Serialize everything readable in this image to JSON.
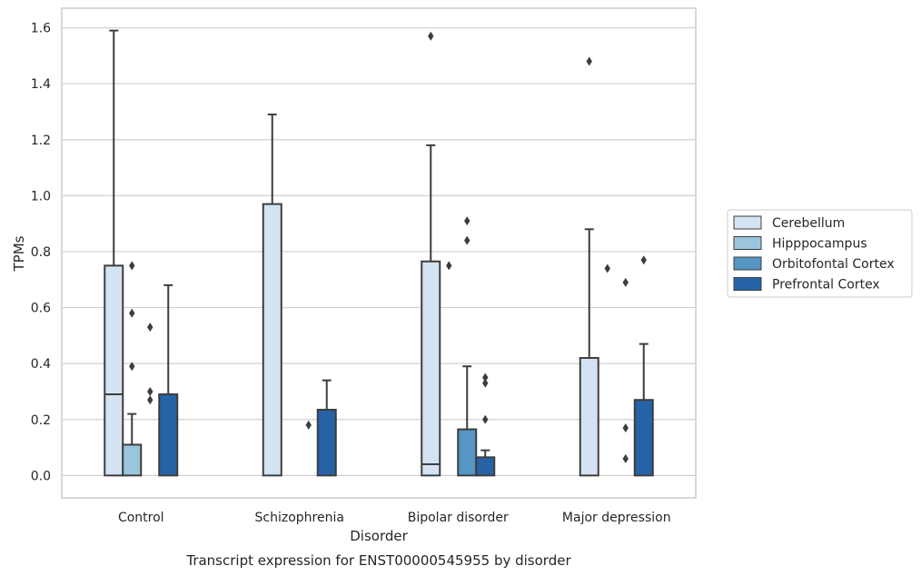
{
  "chart_data": {
    "type": "box",
    "title": "",
    "caption": "Transcript expression for ENST00000545955 by disorder",
    "xlabel": "Disorder",
    "ylabel": "TPMs",
    "ylim": [
      -0.08,
      1.67
    ],
    "yticks": [
      "0.0",
      "0.2",
      "0.4",
      "0.6",
      "0.8",
      "1.0",
      "1.2",
      "1.4",
      "1.6"
    ],
    "grid": "horizontal",
    "legend_position": "center-right",
    "categories": [
      "Control",
      "Schizophrenia",
      "Bipolar disorder",
      "Major depression"
    ],
    "series": [
      {
        "name": "Cerebellum",
        "color": "#d4e3f1",
        "boxes": [
          {
            "q1": 0.0,
            "median": 0.29,
            "q3": 0.75,
            "whisker_low": 0.0,
            "whisker_high": 1.59,
            "outliers": []
          },
          {
            "q1": 0.0,
            "median": 0.0,
            "q3": 0.97,
            "whisker_low": 0.0,
            "whisker_high": 1.29,
            "outliers": []
          },
          {
            "q1": 0.0,
            "median": 0.04,
            "q3": 0.765,
            "whisker_low": 0.0,
            "whisker_high": 1.18,
            "outliers": [
              1.57
            ]
          },
          {
            "q1": 0.0,
            "median": 0.0,
            "q3": 0.42,
            "whisker_low": 0.0,
            "whisker_high": 0.88,
            "outliers": [
              1.48
            ]
          }
        ]
      },
      {
        "name": "Hipppocampus",
        "color": "#9bc5dc",
        "boxes": [
          {
            "q1": 0.0,
            "median": 0.0,
            "q3": 0.11,
            "whisker_low": 0.0,
            "whisker_high": 0.22,
            "outliers": [
              0.39,
              0.58,
              0.75
            ]
          },
          {
            "q1": 0.0,
            "median": 0.0,
            "q3": 0.0,
            "whisker_low": 0.0,
            "whisker_high": 0.0,
            "outliers": []
          },
          {
            "q1": 0.0,
            "median": 0.0,
            "q3": 0.0,
            "whisker_low": 0.0,
            "whisker_high": 0.0,
            "outliers": [
              0.75
            ]
          },
          {
            "q1": 0.0,
            "median": 0.0,
            "q3": 0.0,
            "whisker_low": 0.0,
            "whisker_high": 0.0,
            "outliers": [
              0.74
            ]
          }
        ]
      },
      {
        "name": "Orbitofontal Cortex",
        "color": "#5596c4",
        "boxes": [
          {
            "q1": 0.0,
            "median": 0.0,
            "q3": 0.0,
            "whisker_low": 0.0,
            "whisker_high": 0.0,
            "outliers": [
              0.27,
              0.3,
              0.53
            ]
          },
          {
            "q1": 0.0,
            "median": 0.0,
            "q3": 0.0,
            "whisker_low": 0.0,
            "whisker_high": 0.0,
            "outliers": [
              0.18
            ]
          },
          {
            "q1": 0.0,
            "median": 0.0,
            "q3": 0.165,
            "whisker_low": 0.0,
            "whisker_high": 0.39,
            "outliers": [
              0.84,
              0.91
            ]
          },
          {
            "q1": 0.0,
            "median": 0.0,
            "q3": 0.0,
            "whisker_low": 0.0,
            "whisker_high": 0.0,
            "outliers": [
              0.06,
              0.17,
              0.69
            ]
          }
        ]
      },
      {
        "name": "Prefrontal Cortex",
        "color": "#2563a6",
        "boxes": [
          {
            "q1": 0.0,
            "median": 0.0,
            "q3": 0.29,
            "whisker_low": 0.0,
            "whisker_high": 0.68,
            "outliers": []
          },
          {
            "q1": 0.0,
            "median": 0.0,
            "q3": 0.235,
            "whisker_low": 0.0,
            "whisker_high": 0.34,
            "outliers": []
          },
          {
            "q1": 0.0,
            "median": 0.0,
            "q3": 0.065,
            "whisker_low": 0.0,
            "whisker_high": 0.09,
            "outliers": [
              0.2,
              0.33,
              0.35
            ]
          },
          {
            "q1": 0.0,
            "median": 0.0,
            "q3": 0.27,
            "whisker_low": 0.0,
            "whisker_high": 0.47,
            "outliers": [
              0.77
            ]
          }
        ]
      }
    ]
  }
}
